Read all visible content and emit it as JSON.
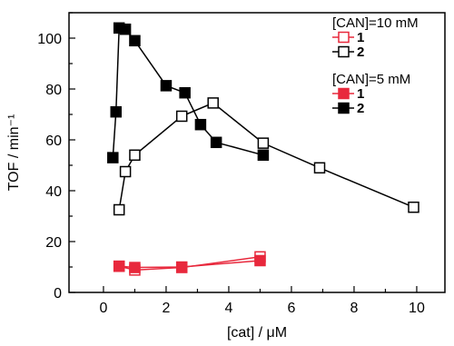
{
  "chart_data": {
    "type": "scatter",
    "xlabel": "[cat] / μM",
    "ylabel": "TOF / min⁻¹",
    "xlim": [
      -1.1,
      10.9
    ],
    "ylim": [
      0,
      110
    ],
    "xticks": [
      0,
      2,
      4,
      6,
      8,
      10
    ],
    "yticks": [
      0,
      20,
      40,
      60,
      80,
      100
    ],
    "grid": false,
    "legend_position": "top-right",
    "legend_groups": [
      {
        "title": "[CAN]=10 mM",
        "series": [
          0,
          1
        ]
      },
      {
        "title": "[CAN]=5 mM",
        "series": [
          2,
          3
        ]
      }
    ],
    "series": [
      {
        "name": "1",
        "group": "[CAN]=10 mM",
        "color": "#e8283c",
        "marker": "open-square",
        "x": [
          0.5,
          1.0,
          2.5,
          5.0
        ],
        "y": [
          10.3,
          8.8,
          9.8,
          14.0
        ]
      },
      {
        "name": "2",
        "group": "[CAN]=10 mM",
        "color": "#000000",
        "marker": "open-square",
        "x": [
          0.5,
          0.7,
          1.0,
          2.5,
          3.5,
          5.1,
          6.9,
          9.9
        ],
        "y": [
          32.5,
          47.5,
          54.0,
          69.3,
          74.5,
          58.7,
          49.0,
          33.5
        ]
      },
      {
        "name": "1",
        "group": "[CAN]=5 mM",
        "color": "#e8283c",
        "marker": "filled-square",
        "x": [
          0.5,
          1.0,
          2.5,
          5.0
        ],
        "y": [
          10.3,
          9.8,
          10.0,
          12.5
        ]
      },
      {
        "name": "2",
        "group": "[CAN]=5 mM",
        "color": "#000000",
        "marker": "filled-square",
        "x": [
          0.3,
          0.4,
          0.5,
          0.7,
          1.0,
          2.0,
          2.6,
          3.1,
          3.6,
          5.1
        ],
        "y": [
          53.0,
          71.0,
          104.0,
          103.5,
          99.0,
          81.3,
          78.5,
          66.0,
          59.0,
          54.0
        ]
      }
    ]
  }
}
